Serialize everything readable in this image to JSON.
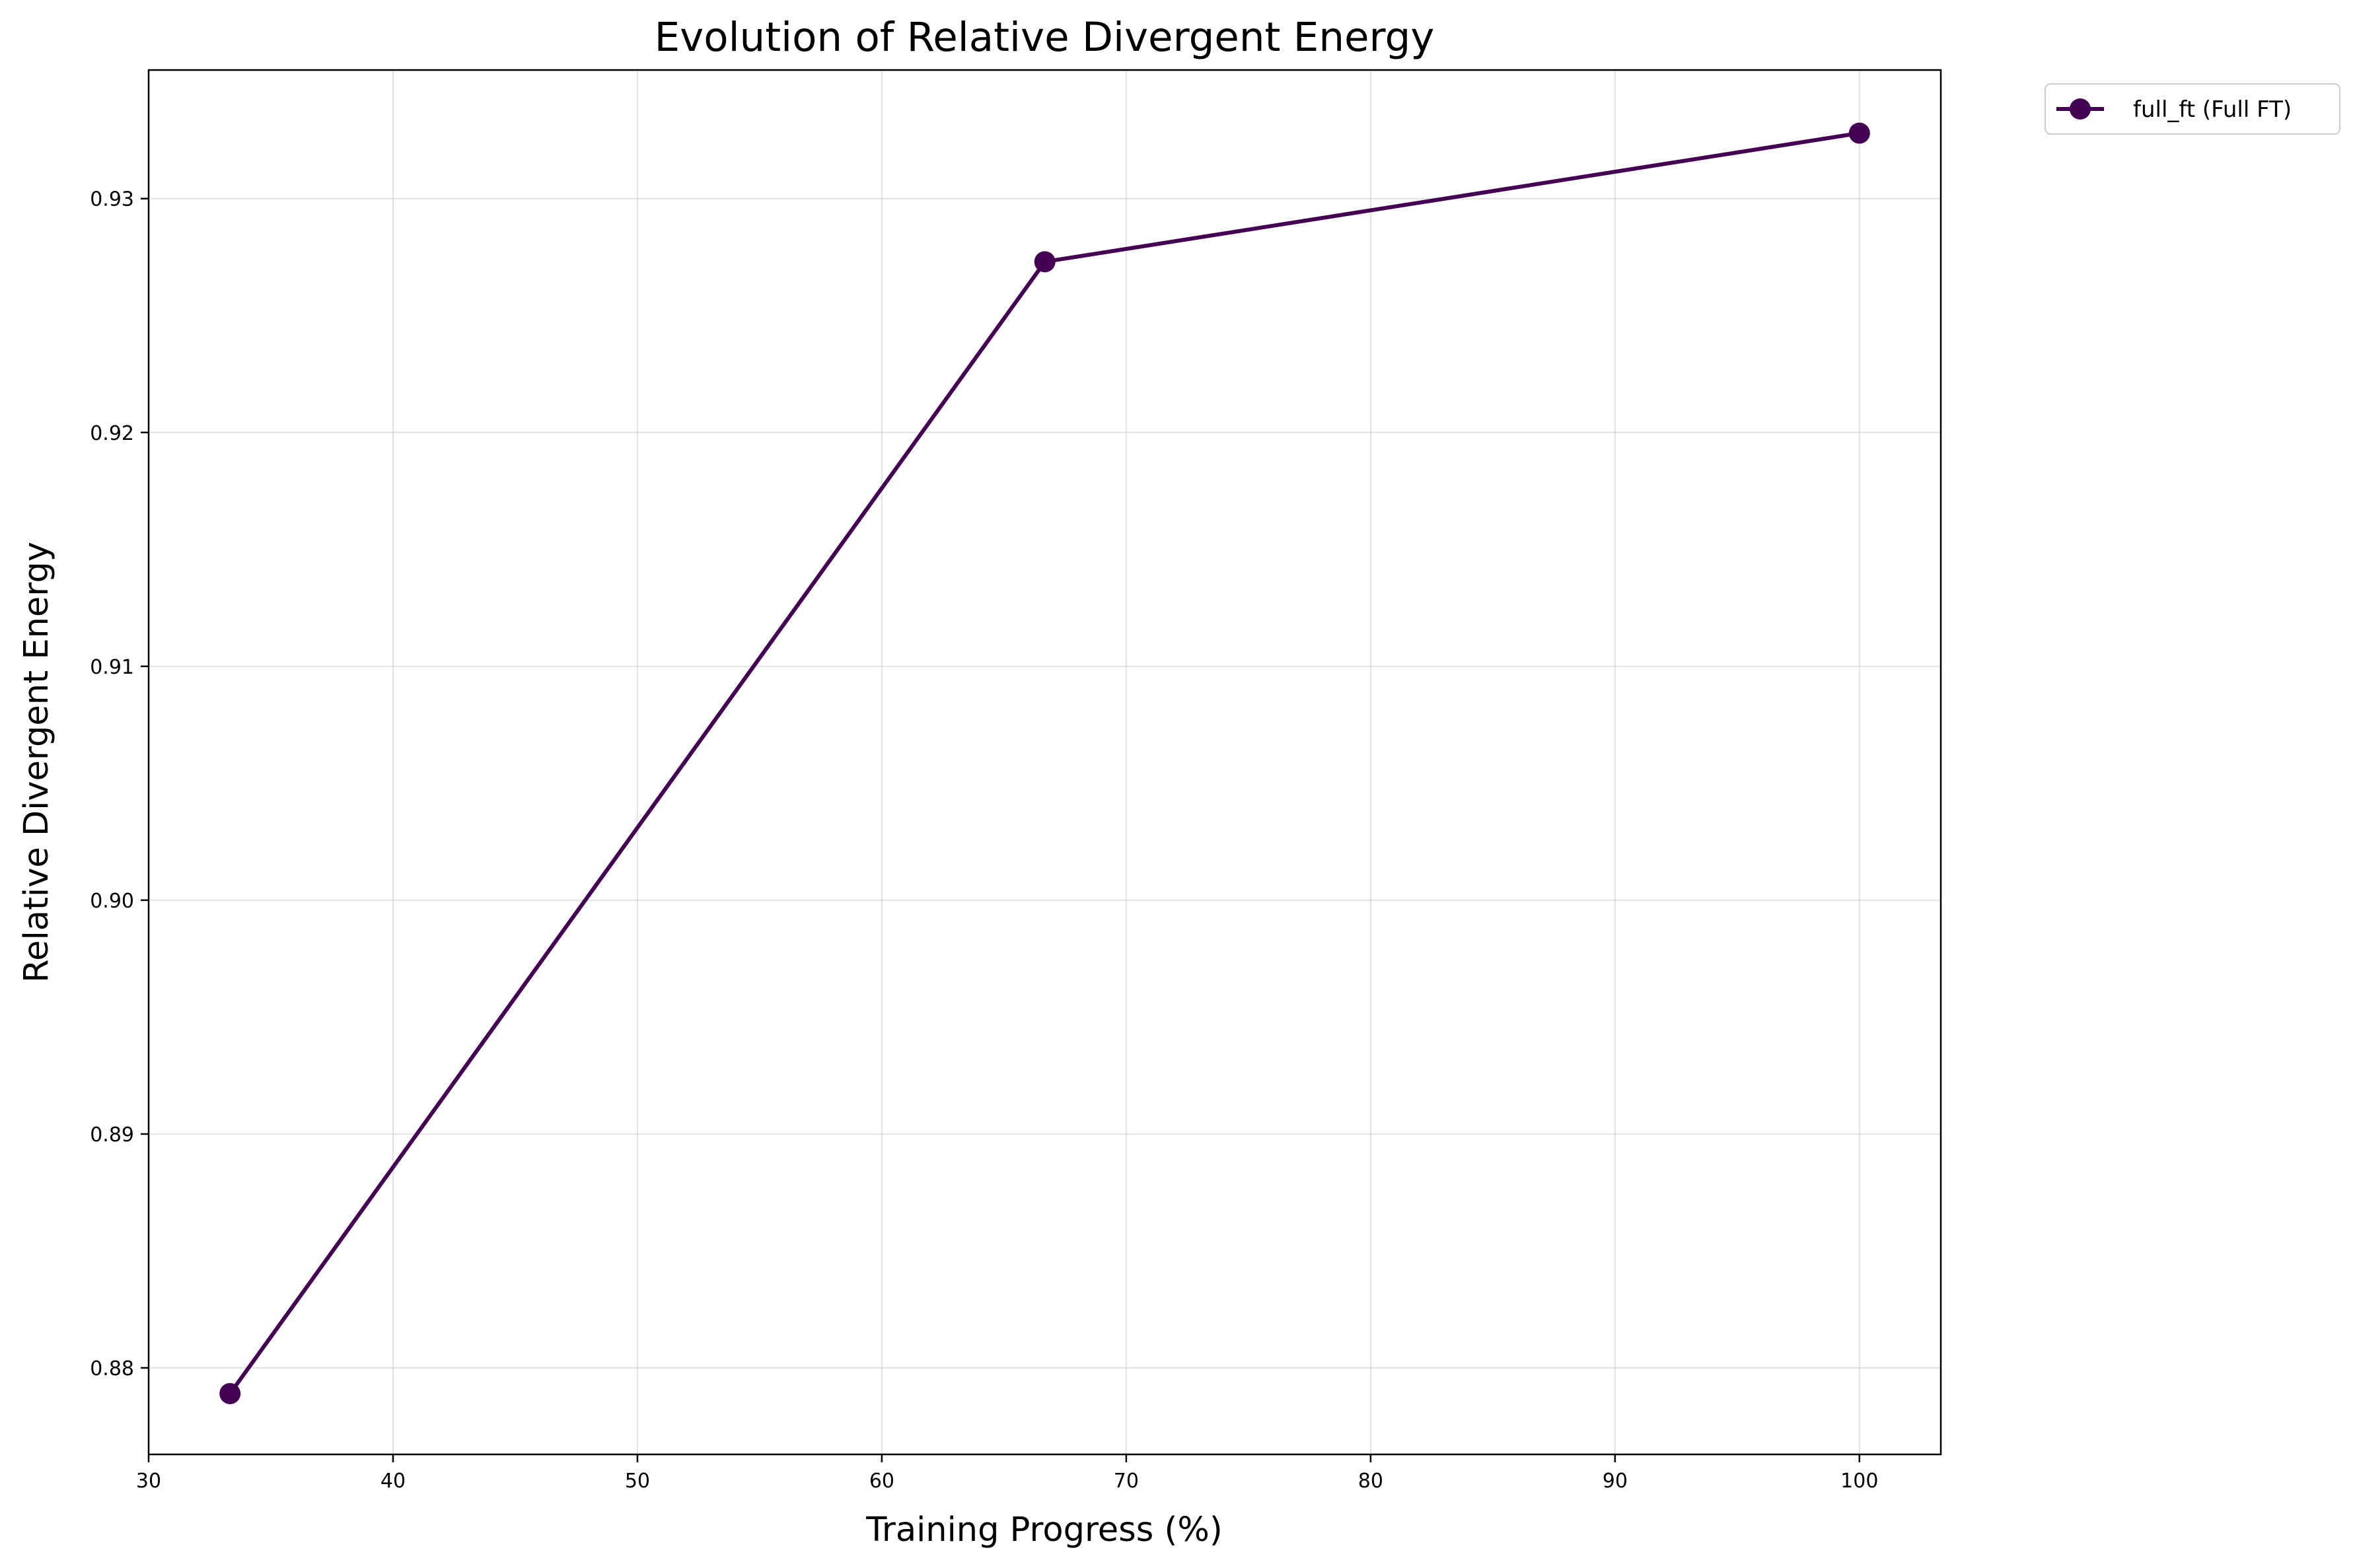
{
  "chart_data": {
    "type": "line",
    "title": "Evolution of Relative Divergent Energy",
    "xlabel": "Training Progress (%)",
    "ylabel": "Relative Divergent Energy",
    "xlim": [
      30,
      103.33
    ],
    "ylim": [
      0.8763,
      0.9355
    ],
    "x_ticks": [
      30,
      40,
      50,
      60,
      70,
      80,
      90,
      100
    ],
    "x_tick_labels": [
      "30",
      "40",
      "50",
      "60",
      "70",
      "80",
      "90",
      "100"
    ],
    "y_ticks": [
      0.88,
      0.89,
      0.9,
      0.91,
      0.92,
      0.93
    ],
    "y_tick_labels": [
      "0.88",
      "0.89",
      "0.90",
      "0.91",
      "0.92",
      "0.93"
    ],
    "grid": true,
    "legend_position": "outside-top-right",
    "series": [
      {
        "name": "full_ft (Full FT)",
        "color": "#440154",
        "marker": "circle",
        "x": [
          33.33,
          66.67,
          100
        ],
        "values": [
          0.8789,
          0.9273,
          0.9328
        ]
      }
    ]
  }
}
